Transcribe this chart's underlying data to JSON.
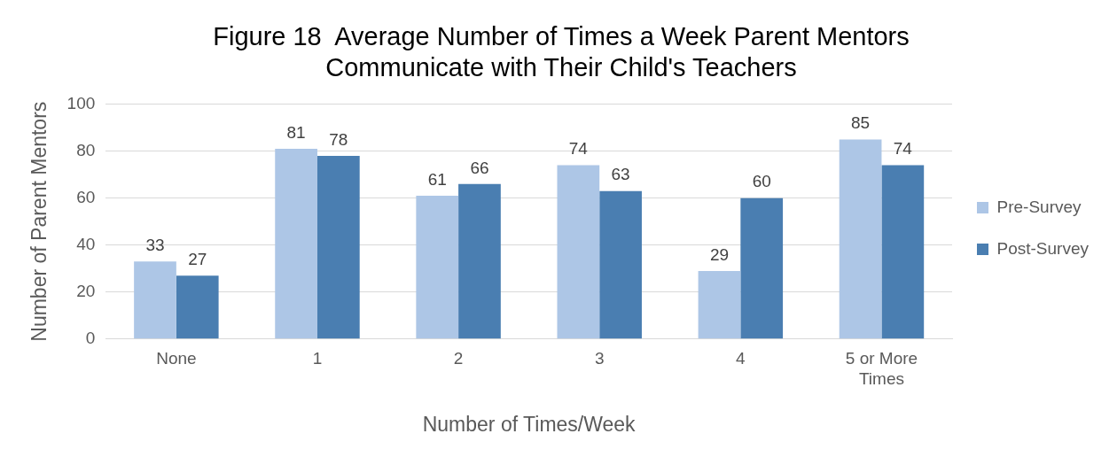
{
  "chart_data": {
    "type": "bar",
    "title": "Figure 18  Average Number of Times a Week Parent Mentors\nCommunicate with Their Child's Teachers",
    "xlabel": "Number of Times/Week",
    "ylabel": "Number of Parent Mentors",
    "categories": [
      "None",
      "1",
      "2",
      "3",
      "4",
      "5 or More Times"
    ],
    "series": [
      {
        "name": "Pre-Survey",
        "color": "#adc6e6",
        "values": [
          33,
          81,
          61,
          74,
          29,
          85
        ]
      },
      {
        "name": "Post-Survey",
        "color": "#4a7eb1",
        "values": [
          27,
          78,
          66,
          63,
          60,
          74
        ]
      }
    ],
    "ylim": [
      0,
      100
    ],
    "yticks": [
      0,
      20,
      40,
      60,
      80,
      100
    ],
    "grid": "y",
    "legend": "right",
    "data_labels": true
  }
}
